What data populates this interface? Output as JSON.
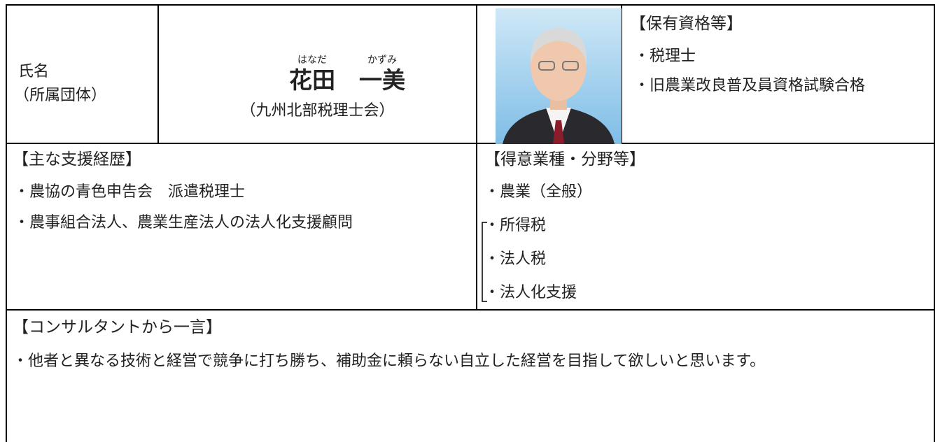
{
  "profile": {
    "label": {
      "name": "氏名",
      "affiliation": "（所属団体）"
    },
    "name": {
      "family": "花田",
      "given": "一美",
      "family_reading": "はなだ",
      "given_reading": "かずみ"
    },
    "affiliation": "（九州北部税理士会）",
    "qualifications": {
      "title": "【保有資格等】",
      "items": [
        "・税理士",
        "・旧農業改良普及員資格試験合格"
      ]
    },
    "career": {
      "title": "【主な支援経歴】",
      "items": [
        "・農協の青色申告会　派遣税理士",
        "・農事組合法人、農業生産法人の法人化支援顧問"
      ]
    },
    "specialties": {
      "title": "【得意業種・分野等】",
      "items": [
        "・農業（全般）",
        "・所得税",
        "・法人税",
        "・法人化支援"
      ]
    },
    "comment": {
      "title": "【コンサルタントから一言】",
      "text": "・他者と異なる技術と経営で競争に打ち勝ち、補助金に頼らない自立した経営を目指して欲しいと思います。"
    }
  }
}
